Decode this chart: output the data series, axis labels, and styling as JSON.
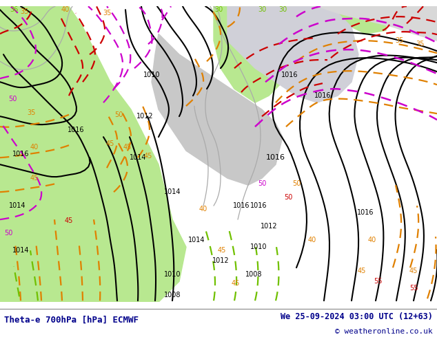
{
  "title_left": "Theta-e 700hPa [hPa] ECMWF",
  "title_right": "We 25-09-2024 03:00 UTC (12+63)",
  "copyright": "© weatheronline.co.uk",
  "bg_green": "#b8e890",
  "bg_gray_light": "#d8d8d8",
  "bg_gray_mid": "#c8c8c8",
  "bg_white": "#f0f0f0",
  "footer_bg": "#ffffff",
  "title_color": "#00008b",
  "copyright_color": "#00008b",
  "blk": "#000000",
  "org": "#e08000",
  "red": "#cc0000",
  "mag": "#cc00cc",
  "lim": "#70c000",
  "gry": "#aaaaaa",
  "figsize": [
    6.34,
    4.9
  ],
  "dpi": 100
}
